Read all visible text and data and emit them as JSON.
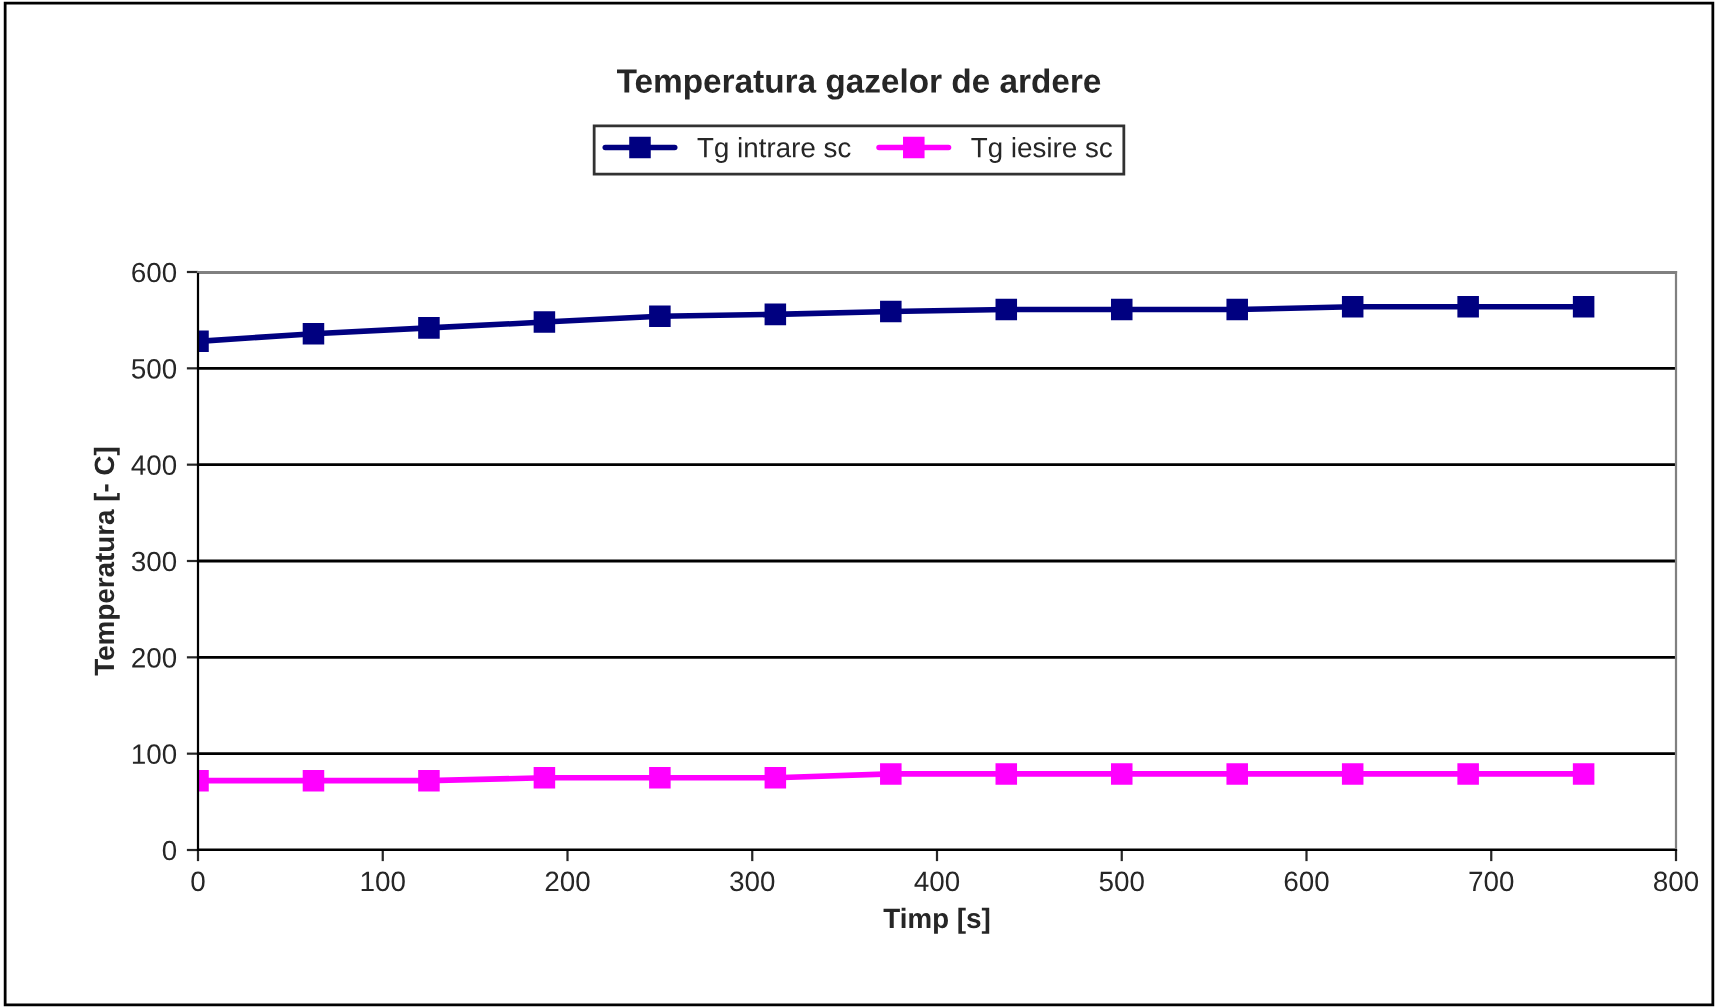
{
  "chart_data": {
    "type": "line",
    "title": "Temperatura gazelor de ardere",
    "xlabel": "Timp [s]",
    "ylabel": "Temperatura [- C]",
    "x": [
      0,
      62.5,
      125,
      187.5,
      250,
      312.5,
      375,
      437.5,
      500,
      562.5,
      625,
      687.5,
      750
    ],
    "series": [
      {
        "name": "Tg intrare sc",
        "color": "#000080",
        "values": [
          528,
          536,
          542,
          548,
          554,
          556,
          559,
          561,
          561,
          561,
          564,
          564,
          564
        ]
      },
      {
        "name": "Tg iesire sc",
        "color": "#ff00ff",
        "values": [
          72,
          72,
          72,
          75,
          75,
          75,
          79,
          79,
          79,
          79,
          79,
          79,
          79
        ]
      }
    ],
    "xlim": [
      0,
      800
    ],
    "xticks": [
      0,
      100,
      200,
      300,
      400,
      500,
      600,
      700,
      800
    ],
    "ylim": [
      0,
      600
    ],
    "yticks": [
      0,
      100,
      200,
      300,
      400,
      500,
      600
    ],
    "grid": "y",
    "legend": "top",
    "marker": "square",
    "line_style": "solid"
  }
}
